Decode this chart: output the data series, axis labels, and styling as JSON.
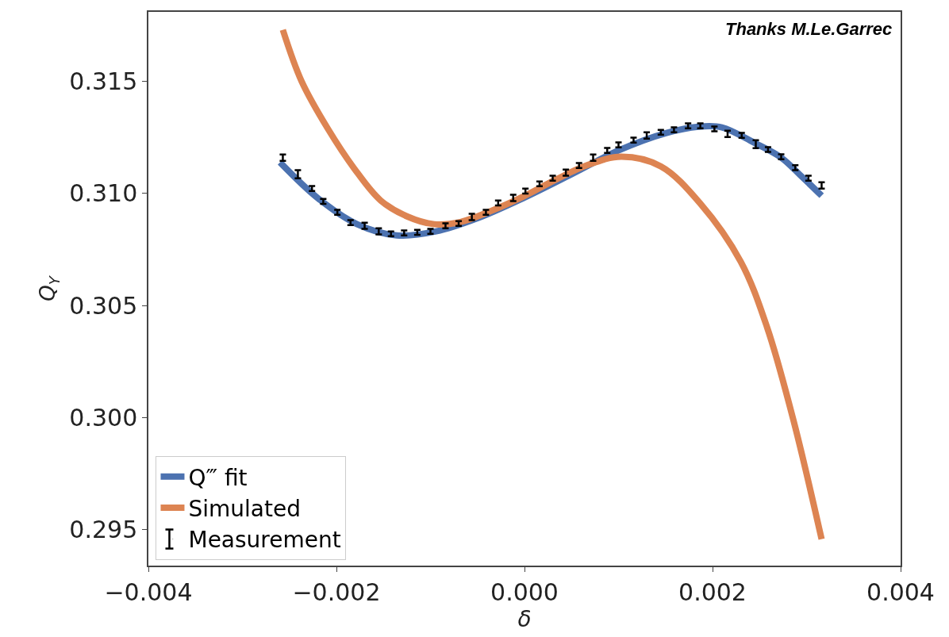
{
  "chart_data": {
    "type": "line",
    "xlabel": "δ",
    "ylabel": "Q$_{Y}$",
    "annotations": [
      "Thanks M.Le.Garrec"
    ],
    "xlim": [
      -0.004,
      0.004
    ],
    "xticks": [
      {
        "value": -0.004,
        "label": "−0.004"
      },
      {
        "value": -0.002,
        "label": "−0.002"
      },
      {
        "value": 0,
        "label": "0.000"
      },
      {
        "value": 0.002,
        "label": "0.002"
      },
      {
        "value": 0.004,
        "label": "0.004"
      }
    ],
    "ylim": [
      0.2934,
      0.3181
    ],
    "yticks": [
      0.295,
      {
        "value": 0.3,
        "label": "0.300"
      },
      0.305,
      {
        "value": 0.31,
        "label": "0.310"
      },
      0.315
    ],
    "grid": false,
    "legend": "bottom left",
    "line_style": "solid",
    "series": [
      {
        "name": "Q‴ fit",
        "color": "#4c72b0",
        "x": [
          -0.0026,
          -0.0022,
          -0.00178,
          -0.00136,
          -0.00094,
          -0.00051,
          -1e-05,
          0.0005,
          0.001,
          0.00151,
          0.00185,
          0.0021,
          0.00244,
          0.00273,
          0.00294,
          0.00316
        ],
        "values": [
          0.31139,
          0.3098,
          0.30863,
          0.30813,
          0.30831,
          0.30888,
          0.3098,
          0.31086,
          0.31192,
          0.3127,
          0.31298,
          0.31295,
          0.31227,
          0.3116,
          0.31079,
          0.3099
        ]
      },
      {
        "name": "Simulated",
        "color": "#dd8452",
        "x": [
          -0.00257,
          -0.00237,
          -0.00209,
          -0.00181,
          -0.00153,
          -0.00125,
          -0.00096,
          -0.00068,
          -0.00035,
          -1e-05,
          0.00033,
          0.00066,
          0.00103,
          0.00145,
          0.00187,
          0.0023,
          0.00258,
          0.00286,
          0.00316
        ],
        "values": [
          0.3173,
          0.315,
          0.31288,
          0.31111,
          0.30969,
          0.30898,
          0.30863,
          0.30873,
          0.30923,
          0.30987,
          0.31061,
          0.31125,
          0.31164,
          0.31121,
          0.30955,
          0.30696,
          0.30403,
          0.29989,
          0.29458
        ]
      },
      {
        "name": "Measurement",
        "type": "scatter",
        "color": "#000000",
        "x": [
          -0.00257,
          -0.00241,
          -0.00226,
          -0.00214,
          -0.00199,
          -0.00185,
          -0.0017,
          -0.00155,
          -0.00142,
          -0.00128,
          -0.00114,
          -0.001,
          -0.00084,
          -0.0007,
          -0.00056,
          -0.00041,
          -0.00028,
          -0.00012,
          1e-05,
          0.00016,
          0.0003,
          0.00044,
          0.00058,
          0.00073,
          0.00088,
          0.001,
          0.00116,
          0.0013,
          0.00145,
          0.00159,
          0.00174,
          0.00187,
          0.00202,
          0.00216,
          0.00231,
          0.00246,
          0.00259,
          0.00273,
          0.00288,
          0.00302,
          0.00316
        ],
        "values": [
          0.3116,
          0.31086,
          0.31022,
          0.30965,
          0.30916,
          0.3087,
          0.30856,
          0.30831,
          0.3082,
          0.30824,
          0.30827,
          0.30831,
          0.30856,
          0.30866,
          0.30895,
          0.30916,
          0.30958,
          0.3098,
          0.31011,
          0.31043,
          0.31068,
          0.31093,
          0.31125,
          0.3116,
          0.31192,
          0.31217,
          0.31238,
          0.31259,
          0.31273,
          0.31284,
          0.31302,
          0.31302,
          0.31288,
          0.31266,
          0.31259,
          0.3122,
          0.31196,
          0.31164,
          0.31115,
          0.31068,
          0.31036
        ],
        "errors": [
          0.00014,
          0.00018,
          0.00011,
          0.00011,
          0.00011,
          0.00011,
          0.00014,
          0.00014,
          0.00011,
          0.00011,
          0.00011,
          0.00011,
          0.00011,
          0.00011,
          0.00014,
          0.00011,
          0.00011,
          0.00014,
          0.00011,
          0.00011,
          0.00011,
          0.00014,
          0.00011,
          0.00014,
          0.00011,
          0.00011,
          0.00011,
          0.00014,
          0.00011,
          0.00011,
          0.00011,
          0.00011,
          0.00011,
          0.00014,
          0.00011,
          0.00018,
          0.00011,
          0.00011,
          0.00011,
          0.00011,
          0.00014
        ]
      }
    ]
  }
}
